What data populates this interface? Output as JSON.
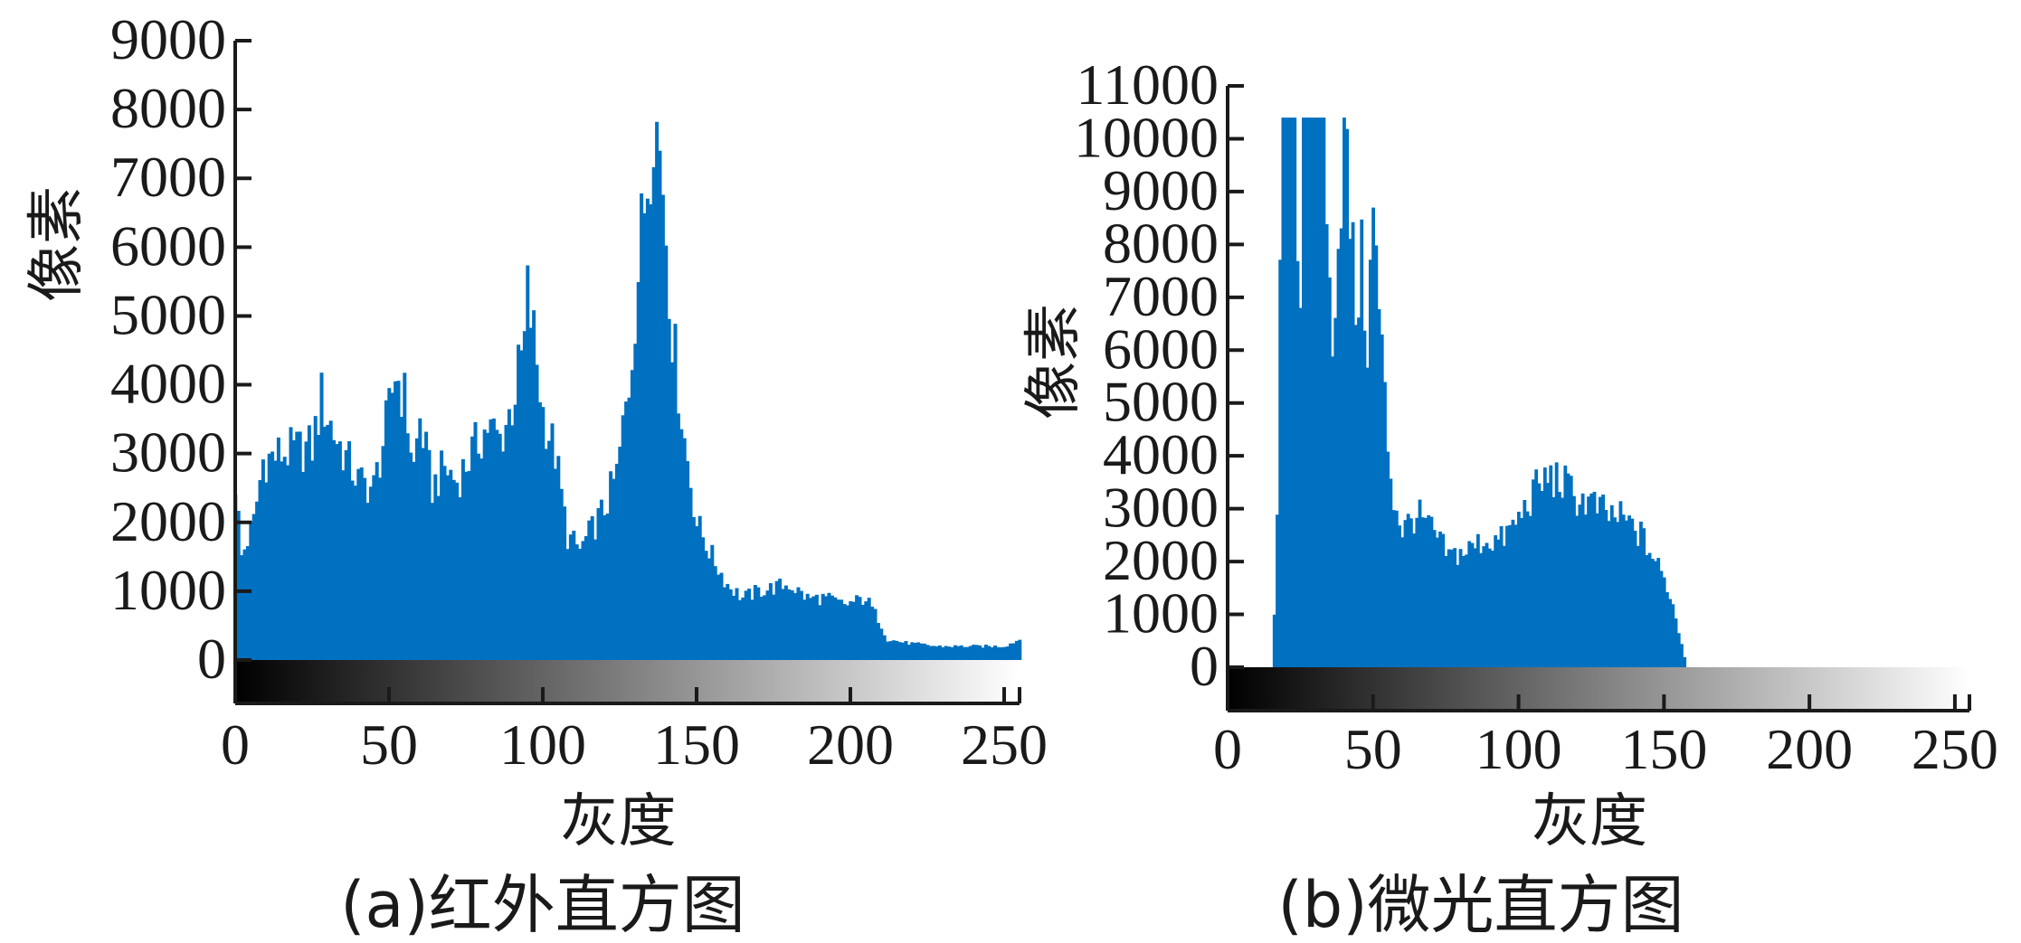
{
  "colors": {
    "bar": "#0070c0",
    "axis": "#1a1a1a"
  },
  "chart_data": [
    {
      "type": "bar",
      "caption": "(a)红外直方图",
      "xlabel": "灰度",
      "ylabel": "像素",
      "xlim": [
        0,
        255
      ],
      "ylim": [
        0,
        9000
      ],
      "xticks": [
        0,
        50,
        100,
        150,
        200,
        250
      ],
      "yticks": [
        0,
        1000,
        2000,
        3000,
        4000,
        5000,
        6000,
        7000,
        8000,
        9000
      ],
      "anchors": [
        [
          0,
          2600
        ],
        [
          2,
          1500
        ],
        [
          6,
          2000
        ],
        [
          9,
          2900
        ],
        [
          15,
          3000
        ],
        [
          25,
          3100
        ],
        [
          28,
          3800
        ],
        [
          32,
          3300
        ],
        [
          40,
          2600
        ],
        [
          45,
          2500
        ],
        [
          50,
          3600
        ],
        [
          52,
          4200
        ],
        [
          55,
          3800
        ],
        [
          58,
          2800
        ],
        [
          60,
          3500
        ],
        [
          64,
          2500
        ],
        [
          68,
          2800
        ],
        [
          72,
          2600
        ],
        [
          78,
          3100
        ],
        [
          82,
          3400
        ],
        [
          86,
          3200
        ],
        [
          90,
          3700
        ],
        [
          94,
          4600
        ],
        [
          95,
          5300
        ],
        [
          97,
          4700
        ],
        [
          100,
          3600
        ],
        [
          104,
          3000
        ],
        [
          108,
          1800
        ],
        [
          112,
          1600
        ],
        [
          116,
          1900
        ],
        [
          120,
          2200
        ],
        [
          124,
          2700
        ],
        [
          128,
          4000
        ],
        [
          132,
          6200
        ],
        [
          135,
          7500
        ],
        [
          136,
          8100
        ],
        [
          139,
          7000
        ],
        [
          142,
          4800
        ],
        [
          146,
          3200
        ],
        [
          150,
          2000
        ],
        [
          155,
          1500
        ],
        [
          160,
          1100
        ],
        [
          165,
          900
        ],
        [
          170,
          1000
        ],
        [
          180,
          1100
        ],
        [
          186,
          900
        ],
        [
          192,
          900
        ],
        [
          198,
          800
        ],
        [
          205,
          900
        ],
        [
          209,
          600
        ],
        [
          212,
          300
        ],
        [
          218,
          250
        ],
        [
          228,
          200
        ],
        [
          240,
          200
        ],
        [
          250,
          200
        ],
        [
          255,
          300
        ]
      ]
    },
    {
      "type": "bar",
      "caption": "(b)微光直方图",
      "xlabel": "灰度",
      "ylabel": "像素",
      "xlim": [
        0,
        255
      ],
      "ylim": [
        0,
        11000
      ],
      "xticks": [
        0,
        50,
        100,
        150,
        200,
        250
      ],
      "yticks": [
        0,
        1000,
        2000,
        3000,
        4000,
        5000,
        6000,
        7000,
        8000,
        9000,
        10000,
        11000
      ],
      "anchors": [
        [
          15,
          0
        ],
        [
          16,
          900
        ],
        [
          17,
          3000
        ],
        [
          18,
          7200
        ],
        [
          19,
          10400
        ],
        [
          23,
          10400
        ],
        [
          24,
          8000
        ],
        [
          25,
          7000
        ],
        [
          26,
          10400
        ],
        [
          33,
          10400
        ],
        [
          34,
          7800
        ],
        [
          36,
          6500
        ],
        [
          38,
          8000
        ],
        [
          40,
          10400
        ],
        [
          42,
          8500
        ],
        [
          44,
          6800
        ],
        [
          46,
          7600
        ],
        [
          48,
          6200
        ],
        [
          50,
          8500
        ],
        [
          52,
          6800
        ],
        [
          55,
          4200
        ],
        [
          57,
          3200
        ],
        [
          60,
          2600
        ],
        [
          65,
          2900
        ],
        [
          70,
          2600
        ],
        [
          76,
          2100
        ],
        [
          82,
          2200
        ],
        [
          88,
          2400
        ],
        [
          94,
          2400
        ],
        [
          100,
          2800
        ],
        [
          105,
          3300
        ],
        [
          110,
          3600
        ],
        [
          115,
          3500
        ],
        [
          120,
          3200
        ],
        [
          125,
          3100
        ],
        [
          130,
          2900
        ],
        [
          136,
          2800
        ],
        [
          142,
          2500
        ],
        [
          148,
          1900
        ],
        [
          152,
          1400
        ],
        [
          155,
          700
        ],
        [
          157,
          200
        ],
        [
          158,
          0
        ]
      ]
    }
  ]
}
